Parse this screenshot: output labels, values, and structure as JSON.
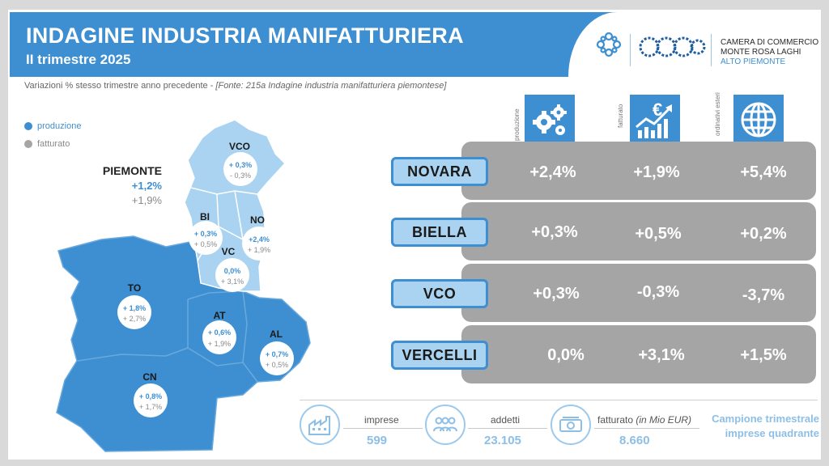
{
  "header": {
    "title": "INDAGINE INDUSTRIA MANIFATTURIERA",
    "subtitle": "II trimestre 2025",
    "logo_lines": [
      "CAMERA DI COMMERCIO",
      "MONTE ROSA LAGHI",
      "ALTO PIEMONTE"
    ]
  },
  "source": {
    "text": "Variazioni % stesso trimestre anno precedente - ",
    "italic": "[Fonte: 215a Indagine industria manifatturiera piemontese]"
  },
  "legend": [
    {
      "label": "produzione",
      "color": "#3d8fd1"
    },
    {
      "label": "fatturato",
      "color": "#a5a5a5"
    }
  ],
  "piemonte": {
    "name": "PIEMONTE",
    "produzione": "+1,2%",
    "fatturato": "+1,9%"
  },
  "map_provinces": [
    {
      "code": "VCO",
      "produzione": "+ 0,3%",
      "fatturato": "- 0,3%"
    },
    {
      "code": "BI",
      "produzione": "+ 0,3%",
      "fatturato": "+ 0,5%"
    },
    {
      "code": "NO",
      "produzione": "+2,4%",
      "fatturato": "+ 1,9%"
    },
    {
      "code": "VC",
      "produzione": "0,0%",
      "fatturato": "+ 3,1%"
    },
    {
      "code": "TO",
      "produzione": "+ 1,8%",
      "fatturato": "+ 2,7%"
    },
    {
      "code": "AT",
      "produzione": "+ 0,6%",
      "fatturato": "+ 1,9%"
    },
    {
      "code": "AL",
      "produzione": "+ 0,7%",
      "fatturato": "+ 0,5%"
    },
    {
      "code": "CN",
      "produzione": "+ 0,8%",
      "fatturato": "+ 1,7%"
    }
  ],
  "columns": [
    {
      "label": "produzione",
      "icon": "gears-icon"
    },
    {
      "label": "fatturato",
      "icon": "euro-growth-icon"
    },
    {
      "label": "ordinativi esteri",
      "icon": "globe-icon"
    }
  ],
  "rows": [
    {
      "name": "NOVARA",
      "produzione": "+2,4%",
      "fatturato": "+1,9%",
      "ordinativi": "+5,4%"
    },
    {
      "name": "BIELLA",
      "produzione": "+0,3%",
      "fatturato": "+0,5%",
      "ordinativi": "+0,2%"
    },
    {
      "name": "VCO",
      "produzione": "+0,3%",
      "fatturato": "-0,3%",
      "ordinativi": "-3,7%"
    },
    {
      "name": "VERCELLI",
      "produzione": "0,0%",
      "fatturato": "+3,1%",
      "ordinativi": "+1,5%"
    }
  ],
  "footer": {
    "imprese_label": "imprese",
    "imprese_value": "599",
    "addetti_label": "addetti",
    "addetti_value": "23.105",
    "fatturato_label": "fatturato",
    "fatturato_unit": "(in Mio EUR)",
    "fatturato_value": "8.660",
    "campione_line1": "Campione trimestrale",
    "campione_line2": "imprese quadrante"
  },
  "colors": {
    "accent": "#3d8fd1",
    "light": "#a9d3f0",
    "grey": "#a5a5a5"
  }
}
